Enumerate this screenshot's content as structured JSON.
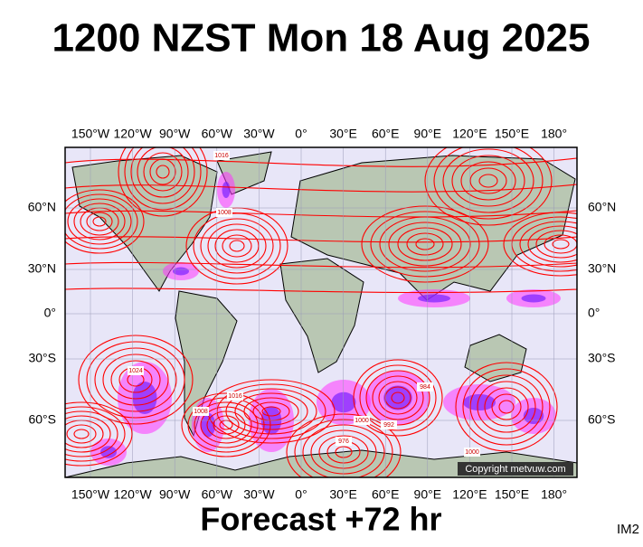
{
  "title": "1200 NZST Mon 18 Aug 2025",
  "lon_labels": [
    "150°W",
    "120°W",
    "90°W",
    "60°W",
    "30°W",
    "0°",
    "30°E",
    "60°E",
    "90°E",
    "120°E",
    "150°E",
    "180°"
  ],
  "lat_labels": [
    "60°N",
    "30°N",
    "0°",
    "30°S",
    "60°S"
  ],
  "isobar_labels": [
    "1016",
    "1008",
    "1024",
    "1016",
    "1008",
    "1000",
    "984",
    "976",
    "992",
    "1000"
  ],
  "copyright": "Copyright metvuw.com",
  "footer": "Forecast +72 hr",
  "image_id": "IM2"
}
